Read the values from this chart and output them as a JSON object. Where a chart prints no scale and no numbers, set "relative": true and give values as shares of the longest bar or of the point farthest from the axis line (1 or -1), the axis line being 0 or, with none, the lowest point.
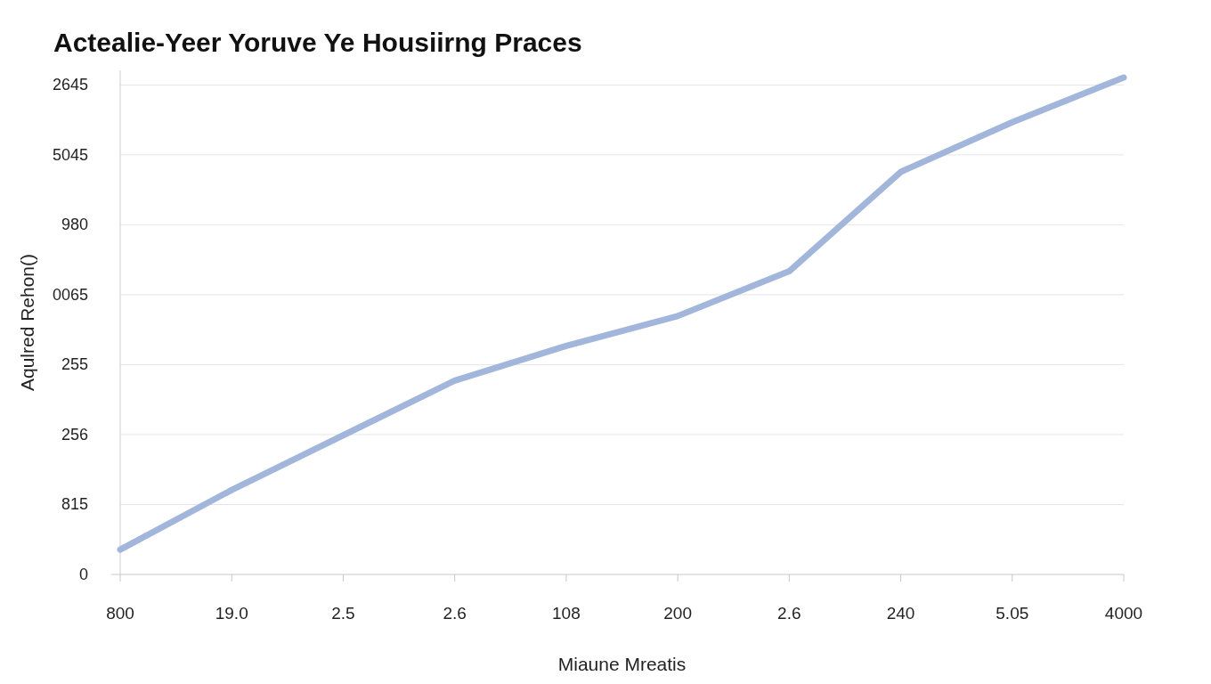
{
  "chart_data": {
    "type": "line",
    "title": "Actealie-Yeer Yoruve Ye Housiirng Praces",
    "xlabel": "Miaune Mreatis",
    "ylabel": "Aqulred Rehon()",
    "categories": [
      "800",
      "19.0",
      "2.5",
      "2.6",
      "108",
      "200",
      "2.6",
      "240",
      "5.05",
      "4000"
    ],
    "relative": true,
    "series": [
      {
        "color": "#a2b5da",
        "values": [
          0.05,
          0.17,
          0.28,
          0.39,
          0.46,
          0.52,
          0.61,
          0.81,
          0.91,
          1
        ]
      }
    ],
    "annotations": [
      "2645",
      "5045",
      "980",
      "0065",
      "255",
      "256",
      "815",
      "0"
    ],
    "grid": "y",
    "marker": "none",
    "line_style": "solid"
  }
}
